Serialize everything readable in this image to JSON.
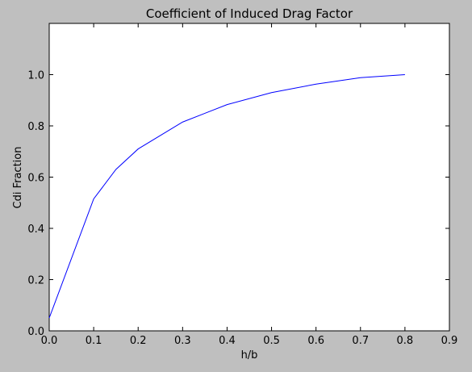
{
  "chart_data": {
    "type": "line",
    "title": "Coefficient of Induced Drag Factor",
    "xlabel": "h/b",
    "ylabel": "Cdi Fraction",
    "xlim": [
      0.0,
      0.9
    ],
    "ylim": [
      0.0,
      1.2
    ],
    "xticks": [
      0.0,
      0.1,
      0.2,
      0.3,
      0.4,
      0.5,
      0.6,
      0.7,
      0.8,
      0.9
    ],
    "xtick_labels": [
      "0.0",
      "0.1",
      "0.2",
      "0.3",
      "0.4",
      "0.5",
      "0.6",
      "0.7",
      "0.8",
      "0.9"
    ],
    "yticks": [
      0.0,
      0.2,
      0.4,
      0.6,
      0.8,
      1.0
    ],
    "ytick_labels": [
      "0.0",
      "0.2",
      "0.4",
      "0.6",
      "0.8",
      "1.0"
    ],
    "grid": false,
    "series": [
      {
        "color": "#0000ff",
        "x": [
          0.0,
          0.1,
          0.15,
          0.2,
          0.3,
          0.4,
          0.5,
          0.6,
          0.7,
          0.8
        ],
        "y": [
          0.05,
          0.515,
          0.63,
          0.71,
          0.815,
          0.883,
          0.93,
          0.963,
          0.988,
          1.0
        ]
      }
    ]
  },
  "colors": {
    "figure_background": "#bfbfbf",
    "plot_background": "#ffffff",
    "line": "#0000ff",
    "axes": "#000000"
  }
}
